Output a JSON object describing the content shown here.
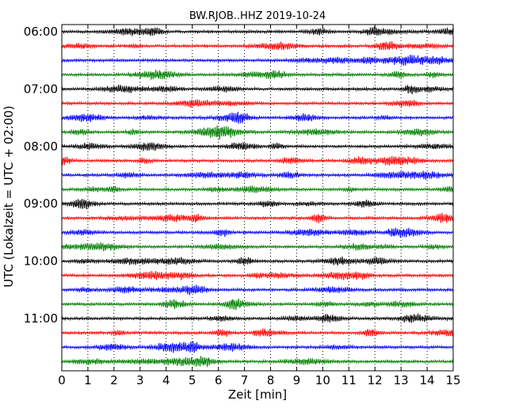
{
  "chart_data": {
    "type": "line",
    "title": "BW.RJOB..HHZ 2019-10-24",
    "xlabel": "Zeit  [min]",
    "ylabel": "UTC (Lokalzeit = UTC + 02:00)",
    "xlim": [
      0,
      15
    ],
    "x_ticks": [
      0,
      1,
      2,
      3,
      4,
      5,
      6,
      7,
      8,
      9,
      10,
      11,
      12,
      13,
      14,
      15
    ],
    "y_tick_labels": [
      "06:00",
      "07:00",
      "08:00",
      "09:00",
      "10:00",
      "11:00"
    ],
    "grid": "vertical-dotted",
    "trace_minutes": 15,
    "traces_per_hour": 4,
    "start_hour": "06:00",
    "num_traces": 24,
    "series_colors": [
      "#000000",
      "#ff0000",
      "#0000ff",
      "#008000"
    ],
    "notes": "Seismogram helicorder plot: 24 stacked 15-minute traces, colors cycle black/red/blue/green"
  }
}
